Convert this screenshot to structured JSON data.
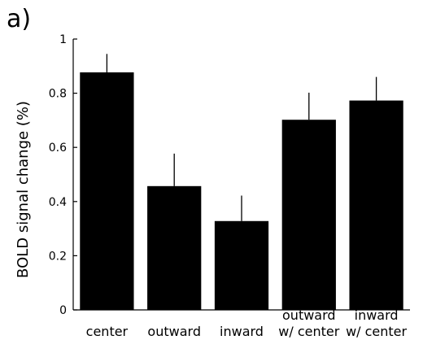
{
  "panel_label": "a)",
  "chart_data": {
    "type": "bar",
    "categories": [
      [
        "center"
      ],
      [
        "outward"
      ],
      [
        "inward"
      ],
      [
        "outward",
        "w/ center"
      ],
      [
        "inward",
        "w/ center"
      ]
    ],
    "values": [
      0.877,
      0.457,
      0.328,
      0.702,
      0.773
    ],
    "error_upper": [
      0.945,
      0.577,
      0.422,
      0.802,
      0.86
    ],
    "ylabel": "BOLD signal change (%)",
    "xlabel": "",
    "ylim": [
      0,
      1
    ],
    "yticks": [
      "0",
      "0.2",
      "0.4",
      "0.6",
      "0.8",
      "1"
    ],
    "bar_color": "#000000",
    "grid": false
  }
}
